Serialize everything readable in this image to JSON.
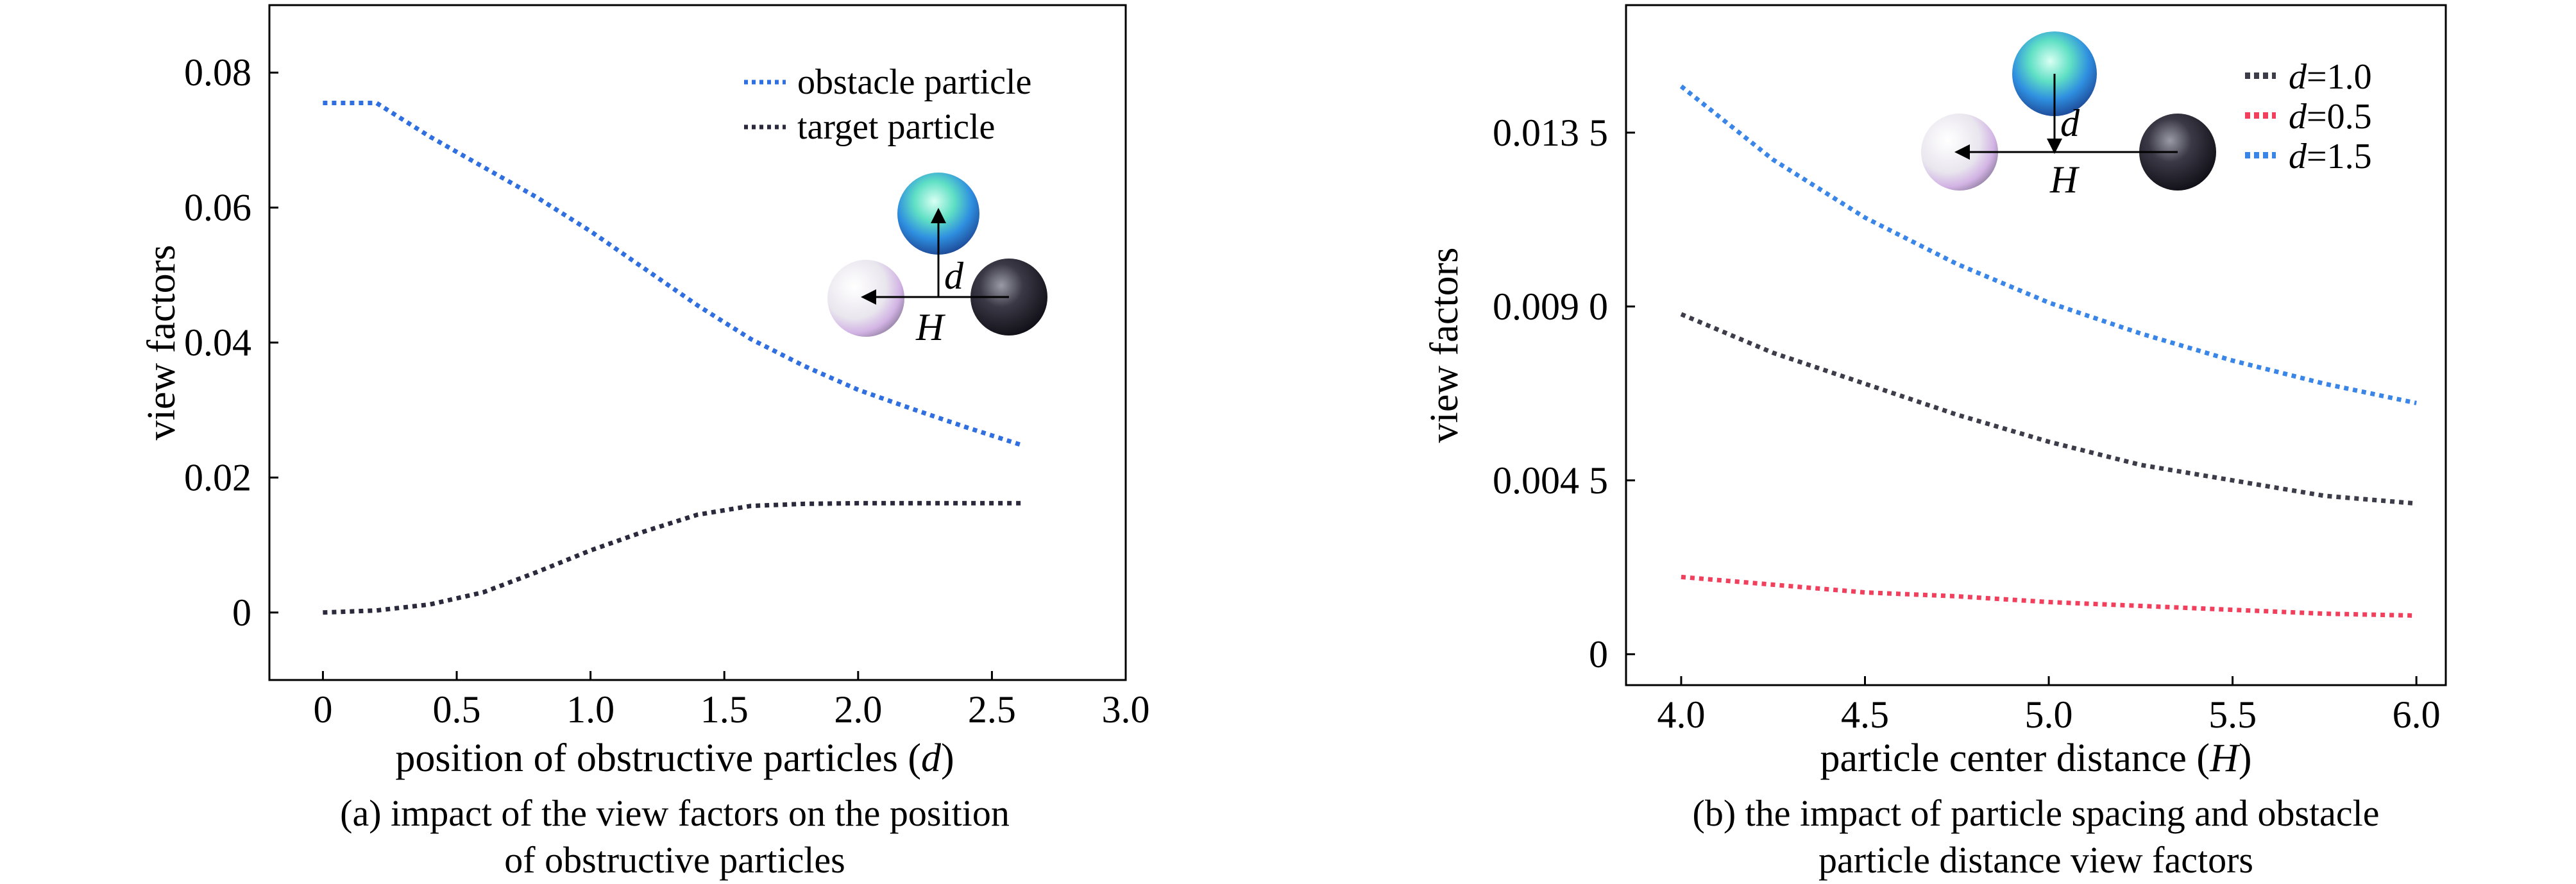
{
  "chart_data": [
    {
      "type": "line",
      "xlabel": "position of obstructive particles (d)",
      "ylabel": "view factors",
      "caption_line1": "(a) impact of the view factors on the position",
      "caption_line2": "of obstructive particles",
      "xlim": [
        -0.2,
        3.0
      ],
      "ylim": [
        -0.01,
        0.09
      ],
      "xticks": [
        0,
        0.5,
        1.0,
        1.5,
        2.0,
        2.5,
        3.0
      ],
      "xtick_labels": [
        "0",
        "0.5",
        "1.0",
        "1.5",
        "2.0",
        "2.5",
        "3.0"
      ],
      "yticks": [
        0,
        0.02,
        0.04,
        0.06,
        0.08
      ],
      "ytick_labels": [
        "0",
        "0.02",
        "0.04",
        "0.06",
        "0.08"
      ],
      "legend_position": "top-right",
      "inset": {
        "vertical_label": "d",
        "horizontal_label": "H"
      },
      "series": [
        {
          "name": "obstacle particle",
          "color": "#2f6fe0",
          "x": [
            0,
            0.2,
            0.4,
            0.6,
            0.8,
            1.0,
            1.2,
            1.4,
            1.6,
            1.8,
            2.0,
            2.2,
            2.4,
            2.62
          ],
          "y": [
            0.0755,
            0.0755,
            0.0705,
            0.066,
            0.0615,
            0.0565,
            0.051,
            0.0455,
            0.0405,
            0.0365,
            0.033,
            0.0302,
            0.0275,
            0.0247
          ]
        },
        {
          "name": "target particle",
          "color": "#2a2a3c",
          "x": [
            0,
            0.2,
            0.4,
            0.6,
            0.8,
            1.0,
            1.2,
            1.4,
            1.6,
            1.8,
            2.0,
            2.2,
            2.4,
            2.62
          ],
          "y": [
            0.0,
            0.0003,
            0.0012,
            0.003,
            0.006,
            0.0092,
            0.012,
            0.0145,
            0.0158,
            0.0161,
            0.0162,
            0.0162,
            0.0162,
            0.0162
          ]
        }
      ]
    },
    {
      "type": "line",
      "xlabel": "particle center distance (H)",
      "ylabel": "view factors",
      "caption_line1": "(b) the impact of particle spacing and obstacle",
      "caption_line2": "particle distance view factors",
      "xlim": [
        3.85,
        6.08
      ],
      "ylim": [
        -0.0008,
        0.0168
      ],
      "xticks": [
        4.0,
        4.5,
        5.0,
        5.5,
        6.0
      ],
      "xtick_labels": [
        "4.0",
        "4.5",
        "5.0",
        "5.5",
        "6.0"
      ],
      "yticks": [
        0,
        0.0045,
        0.009,
        0.0135
      ],
      "ytick_labels": [
        "0",
        "0.004 5",
        "0.009 0",
        "0.013 5"
      ],
      "legend_position": "top-right",
      "inset": {
        "vertical_label": "d",
        "horizontal_label": "H"
      },
      "series": [
        {
          "name": "d=1.0",
          "name_var": "d",
          "name_value": "=1.0",
          "color": "#3d3d4a",
          "x": [
            4.0,
            4.25,
            4.5,
            4.75,
            5.0,
            5.25,
            5.5,
            5.75,
            6.0
          ],
          "y": [
            0.0088,
            0.0078,
            0.007,
            0.0062,
            0.0055,
            0.0049,
            0.0045,
            0.0041,
            0.0039
          ]
        },
        {
          "name": "d=0.5",
          "name_var": "d",
          "name_value": "=0.5",
          "color": "#f0405e",
          "x": [
            4.0,
            4.25,
            4.5,
            4.75,
            5.0,
            5.25,
            5.5,
            5.75,
            6.0
          ],
          "y": [
            0.002,
            0.0018,
            0.0016,
            0.0015,
            0.00135,
            0.00125,
            0.00115,
            0.00105,
            0.001
          ]
        },
        {
          "name": "d=1.5",
          "name_var": "d",
          "name_value": "=1.5",
          "color": "#3a86e8",
          "x": [
            4.0,
            4.25,
            4.5,
            4.75,
            5.0,
            5.25,
            5.5,
            5.75,
            6.0
          ],
          "y": [
            0.0147,
            0.0128,
            0.0113,
            0.0101,
            0.0091,
            0.0083,
            0.0076,
            0.007,
            0.0065
          ]
        }
      ]
    }
  ]
}
